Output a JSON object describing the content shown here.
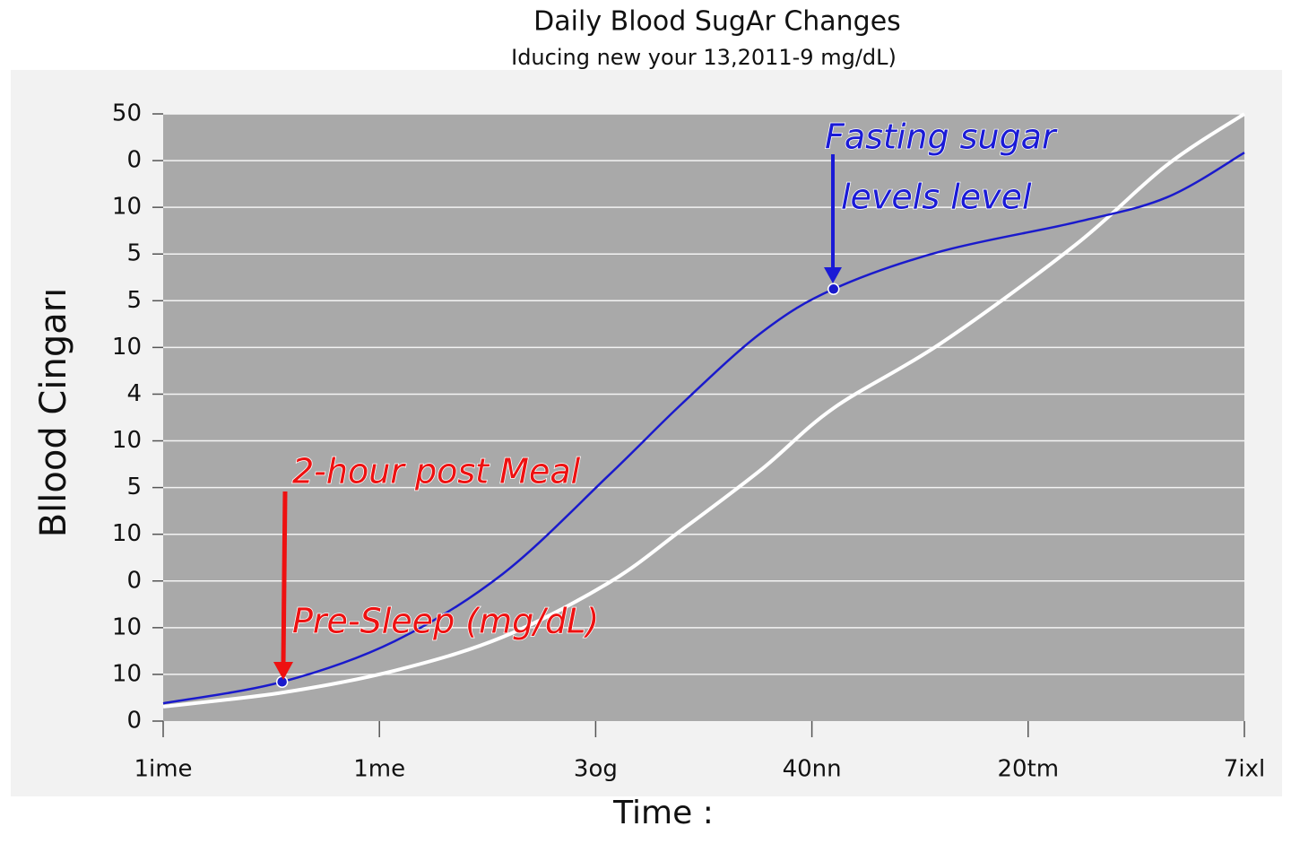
{
  "chart_data": {
    "type": "line",
    "title": "Daily Blood SugAr Changes",
    "subtitle": "Iducing new your 13,2011-9 mg/dL)",
    "y_label": "Bllood Cingarı",
    "x_label": "Time :",
    "ycategories": [
      "0",
      "10",
      "10",
      "0",
      "10",
      "5",
      "10",
      "4",
      "10",
      "5",
      "5",
      "10",
      "0",
      "50"
    ],
    "xcategories": [
      "1ime",
      "1me",
      "3og",
      "40nn",
      "20tm",
      "7ixl"
    ],
    "x": [
      0,
      0.55,
      1.07,
      1.57,
      2.06,
      2.4,
      2.77,
      3.1,
      3.6,
      4.22,
      4.64,
      5
    ],
    "series": [
      {
        "color": "#1a1acc",
        "values": [
          0.38,
          0.84,
          1.71,
          3.15,
          5.26,
          6.8,
          8.33,
          9.25,
          10.06,
          10.68,
          11.21,
          12.17
        ]
      },
      {
        "color": "#ffffff",
        "values": [
          0.31,
          0.61,
          1.08,
          1.8,
          2.96,
          4.1,
          5.4,
          6.7,
          8.1,
          10.2,
          11.9,
          13
        ]
      }
    ],
    "annotations": [
      {
        "text": "Fasting sugar",
        "color": "#1a1ad6"
      },
      {
        "text": "levels level",
        "color": "#1a1ad6"
      },
      {
        "text": "2-hour  post Meal",
        "color": "#ee1111"
      },
      {
        "text": "Pre-Sleep (mg/dL)",
        "color": "#ee1111"
      }
    ],
    "grid": true
  }
}
